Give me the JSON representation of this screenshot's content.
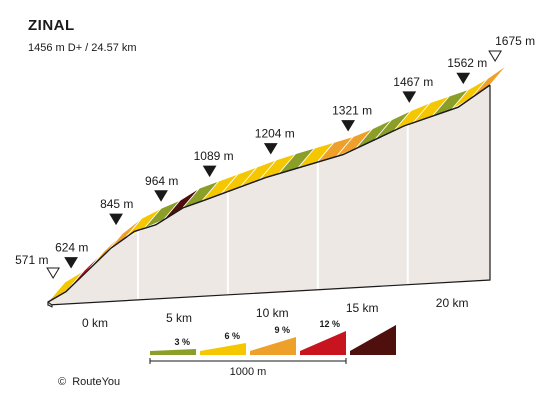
{
  "chart_data": {
    "type": "area",
    "title": "ZINAL",
    "subtitle": "1456 m D+ / 24.57 km",
    "x_unit": "km",
    "x_ticks": [
      "0 km",
      "5 km",
      "10 km",
      "15 km",
      "20 km"
    ],
    "x_tick_values": [
      0,
      5,
      10,
      15,
      20
    ],
    "distance_total_km": 24.57,
    "elevation_markers": [
      {
        "label": "571 m",
        "km": 0.0,
        "type": "start"
      },
      {
        "label": "624 m",
        "km": 1.0
      },
      {
        "label": "845 m",
        "km": 3.5
      },
      {
        "label": "964 m",
        "km": 6.0
      },
      {
        "label": "1089 m",
        "km": 8.7
      },
      {
        "label": "1204 m",
        "km": 12.1
      },
      {
        "label": "1321 m",
        "km": 16.4
      },
      {
        "label": "1467 m",
        "km": 19.8
      },
      {
        "label": "1562 m",
        "km": 22.8
      },
      {
        "label": "1675 m",
        "km": 24.57,
        "type": "end"
      }
    ],
    "profile": [
      {
        "km": 0.0,
        "elev": 571
      },
      {
        "km": 1.0,
        "elev": 624
      },
      {
        "km": 3.5,
        "elev": 845
      },
      {
        "km": 4.8,
        "elev": 930
      },
      {
        "km": 6.0,
        "elev": 964
      },
      {
        "km": 7.5,
        "elev": 1050
      },
      {
        "km": 8.7,
        "elev": 1089
      },
      {
        "km": 12.1,
        "elev": 1204
      },
      {
        "km": 16.4,
        "elev": 1321
      },
      {
        "km": 19.8,
        "elev": 1467
      },
      {
        "km": 22.8,
        "elev": 1562
      },
      {
        "km": 24.57,
        "elev": 1675
      }
    ],
    "segments": [
      {
        "grade": 6
      },
      {
        "grade": 12
      },
      {
        "grade": 9
      },
      {
        "grade": 9
      },
      {
        "grade": 6
      },
      {
        "grade": 3
      },
      {
        "grade": 15
      },
      {
        "grade": 3
      },
      {
        "grade": 6
      },
      {
        "grade": 6
      },
      {
        "grade": 6
      },
      {
        "grade": 6
      },
      {
        "grade": 3
      },
      {
        "grade": 6
      },
      {
        "grade": 9
      },
      {
        "grade": 9
      },
      {
        "grade": 3
      },
      {
        "grade": 3
      },
      {
        "grade": 6
      },
      {
        "grade": 6
      },
      {
        "grade": 3
      },
      {
        "grade": 6
      },
      {
        "grade": 9
      }
    ],
    "legend": {
      "entries": [
        {
          "label": "3 %",
          "color": "#8a9e28"
        },
        {
          "label": "6 %",
          "color": "#f5c700"
        },
        {
          "label": "9 %",
          "color": "#eea12a"
        },
        {
          "label": "12 %",
          "color": "#c8141e"
        },
        {
          "label": "",
          "color": "#4f0f0d"
        }
      ],
      "scale_label": "1000 m"
    },
    "colors": {
      "side": "#ede8e4",
      "side_edge": "#1a1a1a",
      "grid": "#ffffff",
      "grade_3": "#8a9e28",
      "grade_6": "#f5c700",
      "grade_9": "#eea12a",
      "grade_12": "#c8141e",
      "grade_15": "#4f0f0d"
    }
  },
  "credit": "RouteYou",
  "credit_symbol": "©"
}
